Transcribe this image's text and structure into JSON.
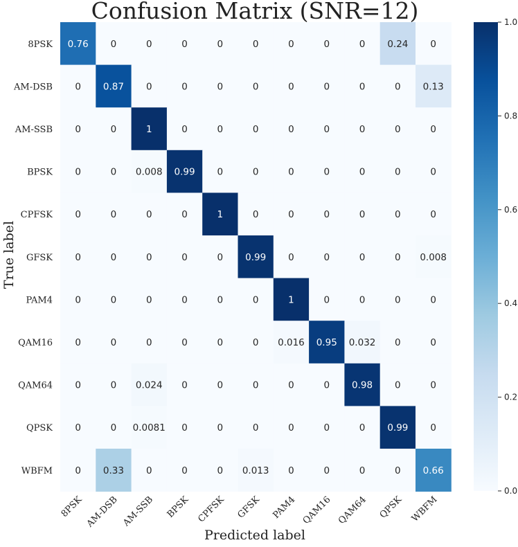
{
  "chart_data": {
    "type": "heatmap",
    "title": "Confusion Matrix (SNR=12)",
    "xlabel": "Predicted label",
    "ylabel": "True label",
    "categories": [
      "8PSK",
      "AM-DSB",
      "AM-SSB",
      "BPSK",
      "CPFSK",
      "GFSK",
      "PAM4",
      "QAM16",
      "QAM64",
      "QPSK",
      "WBFM"
    ],
    "matrix": [
      [
        0.76,
        0,
        0,
        0,
        0,
        0,
        0,
        0,
        0,
        0.24,
        0
      ],
      [
        0,
        0.87,
        0,
        0,
        0,
        0,
        0,
        0,
        0,
        0,
        0.13
      ],
      [
        0,
        0,
        1,
        0,
        0,
        0,
        0,
        0,
        0,
        0,
        0
      ],
      [
        0,
        0,
        0.008,
        0.99,
        0,
        0,
        0,
        0,
        0,
        0,
        0
      ],
      [
        0,
        0,
        0,
        0,
        1,
        0,
        0,
        0,
        0,
        0,
        0
      ],
      [
        0,
        0,
        0,
        0,
        0,
        0.99,
        0,
        0,
        0,
        0,
        0.008
      ],
      [
        0,
        0,
        0,
        0,
        0,
        0,
        1,
        0,
        0,
        0,
        0
      ],
      [
        0,
        0,
        0,
        0,
        0,
        0,
        0.016,
        0.95,
        0.032,
        0,
        0
      ],
      [
        0,
        0,
        0.024,
        0,
        0,
        0,
        0,
        0,
        0.98,
        0,
        0
      ],
      [
        0,
        0,
        0.0081,
        0,
        0,
        0,
        0,
        0,
        0,
        0.99,
        0
      ],
      [
        0,
        0.33,
        0,
        0,
        0,
        0.013,
        0,
        0,
        0,
        0,
        0.66
      ]
    ],
    "colorbar": {
      "colormap": "Blues",
      "range": [
        0,
        1
      ],
      "ticks": [
        "0.0",
        "0.2",
        "0.4",
        "0.6",
        "0.8",
        "1.0"
      ]
    },
    "grid": false
  }
}
